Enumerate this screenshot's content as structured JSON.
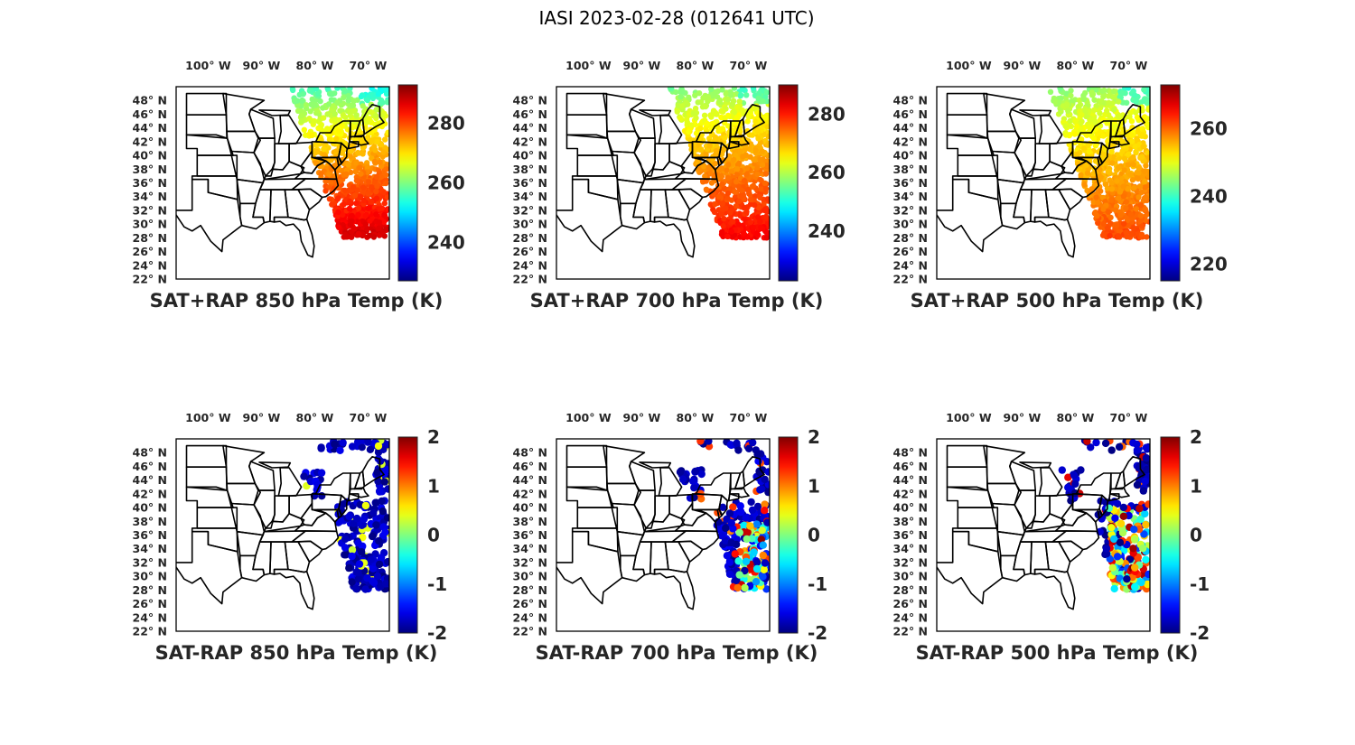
{
  "figure": {
    "title": "IASI 2023-02-28 (012641 UTC)"
  },
  "colors": {
    "colormap": "jet",
    "border": "#000000",
    "text": "#262626"
  },
  "map": {
    "lon_range": [
      -106,
      -66
    ],
    "lat_range": [
      22,
      50
    ],
    "lon_ticks": [
      {
        "lon": -100,
        "label": "100° W"
      },
      {
        "lon": -90,
        "label": "90° W"
      },
      {
        "lon": -80,
        "label": "80° W"
      },
      {
        "lon": -70,
        "label": "70° W"
      }
    ],
    "lat_ticks": [
      {
        "lat": 48,
        "label": "48° N"
      },
      {
        "lat": 46,
        "label": "46° N"
      },
      {
        "lat": 44,
        "label": "44° N"
      },
      {
        "lat": 42,
        "label": "42° N"
      },
      {
        "lat": 40,
        "label": "40° N"
      },
      {
        "lat": 38,
        "label": "38° N"
      },
      {
        "lat": 36,
        "label": "36° N"
      },
      {
        "lat": 34,
        "label": "34° N"
      },
      {
        "lat": 32,
        "label": "32° N"
      },
      {
        "lat": 30,
        "label": "30° N"
      },
      {
        "lat": 28,
        "label": "28° N"
      },
      {
        "lat": 26,
        "label": "26° N"
      },
      {
        "lat": 24,
        "label": "24° N"
      },
      {
        "lat": 22,
        "label": "22° N"
      }
    ]
  },
  "panels": [
    {
      "id": "sum-850",
      "title": "SAT+RAP 850 hPa Temp (K)",
      "kind": "sum",
      "level_hpa": 850,
      "clim": [
        227,
        293
      ],
      "cbar_ticks": [
        "240",
        "260",
        "280"
      ],
      "swath_values_range": [
        255,
        288
      ]
    },
    {
      "id": "sum-700",
      "title": "SAT+RAP 700 hPa Temp (K)",
      "kind": "sum",
      "level_hpa": 700,
      "clim": [
        223,
        290
      ],
      "cbar_ticks": [
        "240",
        "260",
        "280"
      ],
      "swath_values_range": [
        256,
        282
      ]
    },
    {
      "id": "sum-500",
      "title": "SAT+RAP 500 hPa Temp (K)",
      "kind": "sum",
      "level_hpa": 500,
      "clim": [
        215,
        273
      ],
      "cbar_ticks": [
        "220",
        "240",
        "260"
      ],
      "swath_values_range": [
        245,
        262
      ]
    },
    {
      "id": "diff-850",
      "title": "SAT-RAP 850 hPa Temp (K)",
      "kind": "diff",
      "level_hpa": 850,
      "clim": [
        -2,
        2
      ],
      "cbar_ticks": [
        "-2",
        "-1",
        "0",
        "1",
        "2"
      ]
    },
    {
      "id": "diff-700",
      "title": "SAT-RAP 700 hPa Temp (K)",
      "kind": "diff",
      "level_hpa": 700,
      "clim": [
        -2,
        2
      ],
      "cbar_ticks": [
        "-2",
        "-1",
        "0",
        "1",
        "2"
      ]
    },
    {
      "id": "diff-500",
      "title": "SAT-RAP 500 hPa Temp (K)",
      "kind": "diff",
      "level_hpa": 500,
      "clim": [
        -2,
        2
      ],
      "cbar_ticks": [
        "-2",
        "-1",
        "0",
        "1",
        "2"
      ]
    }
  ]
}
